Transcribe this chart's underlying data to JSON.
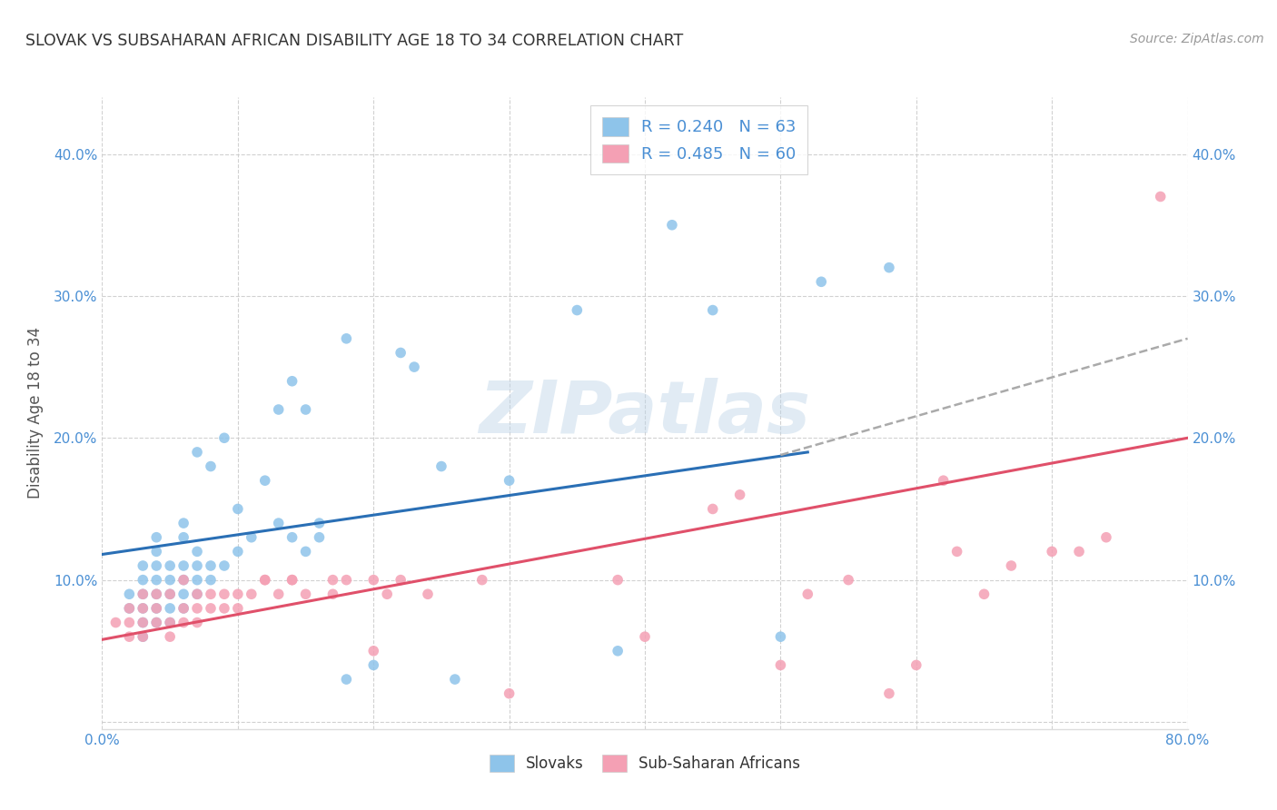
{
  "title": "SLOVAK VS SUBSAHARAN AFRICAN DISABILITY AGE 18 TO 34 CORRELATION CHART",
  "source": "Source: ZipAtlas.com",
  "ylabel": "Disability Age 18 to 34",
  "xlim": [
    0.0,
    0.8
  ],
  "ylim": [
    -0.005,
    0.44
  ],
  "xticks": [
    0.0,
    0.1,
    0.2,
    0.3,
    0.4,
    0.5,
    0.6,
    0.7,
    0.8
  ],
  "yticks": [
    0.0,
    0.1,
    0.2,
    0.3,
    0.4
  ],
  "ytick_labels": [
    "",
    "10.0%",
    "20.0%",
    "30.0%",
    "40.0%"
  ],
  "slovak_color": "#8ec4ea",
  "subsaharan_color": "#f4a0b4",
  "slovak_line_color": "#2a6fb5",
  "subsaharan_line_color": "#e0506a",
  "dashed_line_color": "#aaaaaa",
  "slovak_R": 0.24,
  "slovak_N": 63,
  "subsaharan_R": 0.485,
  "subsaharan_N": 60,
  "legend_label_1": "Slovaks",
  "legend_label_2": "Sub-Saharan Africans",
  "watermark": "ZIPatlas",
  "background_color": "#ffffff",
  "grid_color": "#cccccc",
  "blue_text_color": "#4a8fd4",
  "title_color": "#333333",
  "source_color": "#999999",
  "ylabel_color": "#555555",
  "slovak_scatter_x": [
    0.02,
    0.02,
    0.03,
    0.03,
    0.03,
    0.03,
    0.03,
    0.03,
    0.04,
    0.04,
    0.04,
    0.04,
    0.04,
    0.04,
    0.04,
    0.05,
    0.05,
    0.05,
    0.05,
    0.05,
    0.06,
    0.06,
    0.06,
    0.06,
    0.06,
    0.06,
    0.07,
    0.07,
    0.07,
    0.07,
    0.07,
    0.08,
    0.08,
    0.08,
    0.09,
    0.09,
    0.1,
    0.1,
    0.11,
    0.12,
    0.13,
    0.13,
    0.14,
    0.14,
    0.15,
    0.15,
    0.16,
    0.16,
    0.18,
    0.18,
    0.2,
    0.22,
    0.23,
    0.25,
    0.26,
    0.3,
    0.35,
    0.38,
    0.42,
    0.45,
    0.5,
    0.53,
    0.58
  ],
  "slovak_scatter_y": [
    0.08,
    0.09,
    0.06,
    0.07,
    0.08,
    0.09,
    0.1,
    0.11,
    0.07,
    0.08,
    0.09,
    0.1,
    0.11,
    0.12,
    0.13,
    0.07,
    0.08,
    0.09,
    0.1,
    0.11,
    0.08,
    0.09,
    0.1,
    0.11,
    0.13,
    0.14,
    0.09,
    0.1,
    0.11,
    0.12,
    0.19,
    0.1,
    0.11,
    0.18,
    0.11,
    0.2,
    0.12,
    0.15,
    0.13,
    0.17,
    0.14,
    0.22,
    0.13,
    0.24,
    0.12,
    0.22,
    0.13,
    0.14,
    0.03,
    0.27,
    0.04,
    0.26,
    0.25,
    0.18,
    0.03,
    0.17,
    0.29,
    0.05,
    0.35,
    0.29,
    0.06,
    0.31,
    0.32
  ],
  "subsaharan_scatter_x": [
    0.01,
    0.02,
    0.02,
    0.02,
    0.03,
    0.03,
    0.03,
    0.03,
    0.04,
    0.04,
    0.04,
    0.05,
    0.05,
    0.05,
    0.06,
    0.06,
    0.06,
    0.07,
    0.07,
    0.07,
    0.08,
    0.08,
    0.09,
    0.09,
    0.1,
    0.1,
    0.11,
    0.12,
    0.12,
    0.13,
    0.14,
    0.14,
    0.15,
    0.17,
    0.17,
    0.18,
    0.2,
    0.2,
    0.21,
    0.22,
    0.24,
    0.28,
    0.3,
    0.38,
    0.4,
    0.45,
    0.47,
    0.5,
    0.52,
    0.55,
    0.58,
    0.6,
    0.62,
    0.63,
    0.65,
    0.67,
    0.7,
    0.72,
    0.74,
    0.78
  ],
  "subsaharan_scatter_y": [
    0.07,
    0.06,
    0.07,
    0.08,
    0.06,
    0.07,
    0.08,
    0.09,
    0.07,
    0.08,
    0.09,
    0.06,
    0.07,
    0.09,
    0.07,
    0.08,
    0.1,
    0.07,
    0.08,
    0.09,
    0.08,
    0.09,
    0.08,
    0.09,
    0.08,
    0.09,
    0.09,
    0.1,
    0.1,
    0.09,
    0.1,
    0.1,
    0.09,
    0.1,
    0.09,
    0.1,
    0.1,
    0.05,
    0.09,
    0.1,
    0.09,
    0.1,
    0.02,
    0.1,
    0.06,
    0.15,
    0.16,
    0.04,
    0.09,
    0.1,
    0.02,
    0.04,
    0.17,
    0.12,
    0.09,
    0.11,
    0.12,
    0.12,
    0.13,
    0.37
  ],
  "slovak_trendline_x": [
    0.0,
    0.52
  ],
  "slovak_trendline_y": [
    0.118,
    0.19
  ],
  "dashed_trendline_x": [
    0.5,
    0.8
  ],
  "dashed_trendline_y": [
    0.188,
    0.27
  ],
  "subsaharan_trendline_x": [
    0.0,
    0.8
  ],
  "subsaharan_trendline_y": [
    0.058,
    0.2
  ]
}
